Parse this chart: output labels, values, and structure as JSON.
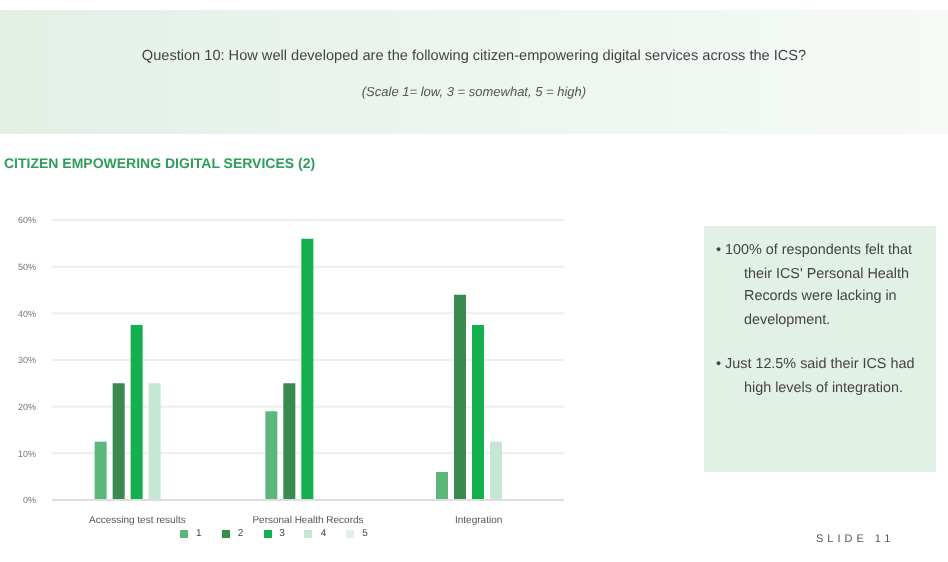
{
  "chart_data": {
    "type": "bar",
    "title": "Question 10: How well developed are the following citizen-empowering digital services across the ICS?",
    "subtitle": "(Scale 1= low, 3 = somewhat, 5 = high)",
    "categories": [
      "Accessing test results",
      "Personal Health Records",
      "Integration"
    ],
    "series": [
      {
        "name": "1",
        "color": "#5cb87a",
        "values": [
          12.5,
          19,
          6
        ]
      },
      {
        "name": "2",
        "color": "#3a8a50",
        "values": [
          25,
          25,
          44
        ]
      },
      {
        "name": "3",
        "color": "#12b04f",
        "values": [
          37.5,
          56,
          37.5
        ]
      },
      {
        "name": "4",
        "color": "#c5e8d2",
        "values": [
          25,
          0,
          12.5
        ]
      },
      {
        "name": "5",
        "color": "#dff0e5",
        "values": [
          0,
          0,
          0
        ]
      }
    ],
    "ylim": [
      0,
      60
    ],
    "yticks": [
      {
        "value": 0,
        "label": "0%"
      },
      {
        "value": 10,
        "label": "10%"
      },
      {
        "value": 20,
        "label": "20%"
      },
      {
        "value": 30,
        "label": "30%"
      },
      {
        "value": 40,
        "label": "40%"
      },
      {
        "value": 50,
        "label": "50%"
      },
      {
        "value": 60,
        "label": "60%"
      }
    ],
    "grid": "y",
    "legend": "bottom",
    "annotations": [
      "CITIZEN EMPOWERING DIGITAL SERVICES (2)",
      "• 100% of respondents felt that their ICS' Personal Health Records were lacking in development.",
      "• Just 12.5% said their ICS had high levels of integration.",
      "SLIDE 11"
    ]
  }
}
